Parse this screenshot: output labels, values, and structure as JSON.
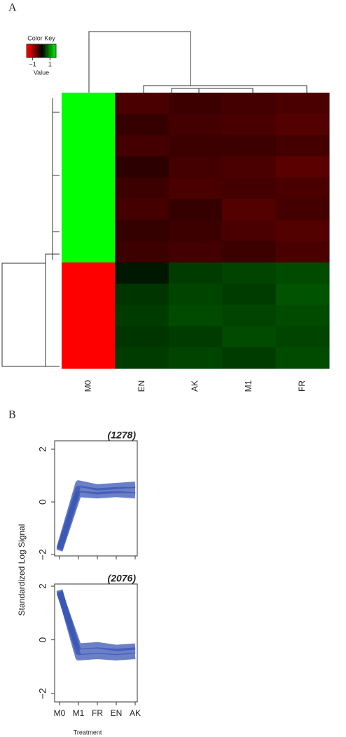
{
  "panel_labels": [
    "A",
    "B"
  ],
  "chart_data": [
    {
      "type": "heatmap",
      "key_title": "Color Key",
      "key_label": "Value",
      "key_ticks": [
        {
          "value": -1,
          "label": "−1"
        },
        1
      ],
      "clim": [
        -1.7,
        1.7
      ],
      "colors": {
        "low": "#ff0000",
        "mid": "#000000",
        "high": "#00ff00"
      },
      "categories": [
        "M0",
        "EN",
        "AK",
        "M1",
        "FR"
      ],
      "rows": [
        [
          1.8,
          -0.5,
          -0.4,
          -0.45,
          -0.5
        ],
        [
          1.8,
          -0.35,
          -0.45,
          -0.5,
          -0.55
        ],
        [
          1.8,
          -0.45,
          -0.4,
          -0.4,
          -0.45
        ],
        [
          1.8,
          -0.3,
          -0.45,
          -0.5,
          -0.6
        ],
        [
          1.8,
          -0.4,
          -0.5,
          -0.45,
          -0.5
        ],
        [
          1.8,
          -0.45,
          -0.35,
          -0.55,
          -0.45
        ],
        [
          1.8,
          -0.35,
          -0.4,
          -0.5,
          -0.55
        ],
        [
          1.8,
          -0.4,
          -0.45,
          -0.4,
          -0.5
        ],
        [
          -1.8,
          0.15,
          0.4,
          0.45,
          0.5
        ],
        [
          -1.8,
          0.35,
          0.45,
          0.4,
          0.55
        ],
        [
          -1.8,
          0.4,
          0.5,
          0.45,
          0.5
        ],
        [
          -1.8,
          0.35,
          0.4,
          0.5,
          0.45
        ],
        [
          -1.8,
          0.4,
          0.45,
          0.4,
          0.5
        ]
      ]
    },
    {
      "type": "line",
      "annotation": "(1278)",
      "ylim": [
        -2.05,
        2.32
      ],
      "yticks": [
        {
          "value": -2,
          "label": "−2"
        },
        0,
        2
      ],
      "series": [
        {
          "color": "#3a55b4",
          "values": [
            -1.8,
            0.5,
            0.4,
            0.45,
            0.45
          ]
        },
        {
          "color": "#3a55b4",
          "values": [
            -1.75,
            0.7,
            0.55,
            0.6,
            0.65
          ]
        },
        {
          "color": "#3a55b4",
          "values": [
            -1.85,
            0.3,
            0.25,
            0.3,
            0.25
          ]
        }
      ]
    },
    {
      "type": "line",
      "annotation": "(2076)",
      "ylim": [
        -2.31,
        2.08
      ],
      "yticks": [
        {
          "value": -2,
          "label": "−2"
        },
        0,
        2
      ],
      "categories": [
        "M0",
        "M1",
        "FR",
        "EN",
        "AK"
      ],
      "ylabel": "Standardized Log Signal",
      "xlabel": "Treatment",
      "series": [
        {
          "color": "#3a55b4",
          "values": [
            1.8,
            -0.45,
            -0.4,
            -0.45,
            -0.4
          ]
        },
        {
          "color": "#3a55b4",
          "values": [
            1.75,
            -0.25,
            -0.2,
            -0.3,
            -0.25
          ]
        },
        {
          "color": "#3a55b4",
          "values": [
            1.85,
            -0.65,
            -0.6,
            -0.65,
            -0.6
          ]
        }
      ]
    }
  ]
}
